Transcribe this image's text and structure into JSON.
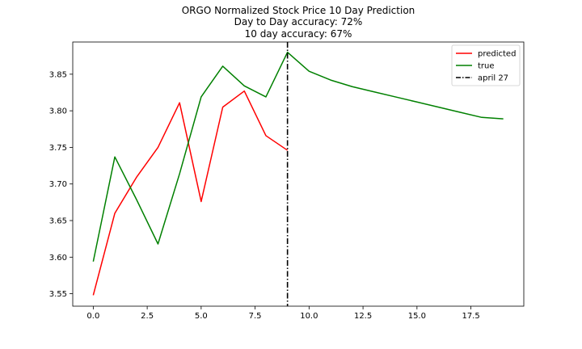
{
  "chart_data": {
    "type": "line",
    "title_lines": [
      "ORGO Normalized Stock Price 10 Day Prediction",
      "Day to Day accuracy: 72%",
      "10 day accuracy: 67%"
    ],
    "xlabel": "",
    "ylabel": "",
    "xlim": [
      -0.95,
      19.95
    ],
    "ylim": [
      3.533,
      3.894
    ],
    "x_ticks": [
      0.0,
      2.5,
      5.0,
      7.5,
      10.0,
      12.5,
      15.0,
      17.5
    ],
    "x_tick_labels": [
      "0.0",
      "2.5",
      "5.0",
      "7.5",
      "10.0",
      "12.5",
      "15.0",
      "17.5"
    ],
    "y_ticks": [
      3.55,
      3.6,
      3.65,
      3.7,
      3.75,
      3.8,
      3.85
    ],
    "y_tick_labels": [
      "3.55",
      "3.60",
      "3.65",
      "3.70",
      "3.75",
      "3.80",
      "3.85"
    ],
    "grid": false,
    "legend_position": "top-right",
    "series": [
      {
        "name": "predicted",
        "color": "#ff0000",
        "x": [
          0,
          1,
          2,
          3,
          4,
          5,
          6,
          7,
          8,
          9
        ],
        "values": [
          3.548,
          3.66,
          3.709,
          3.75,
          3.811,
          3.676,
          3.805,
          3.827,
          3.766,
          3.746
        ]
      },
      {
        "name": "true",
        "color": "#008000",
        "x": [
          0,
          1,
          2,
          3,
          4,
          5,
          6,
          7,
          8,
          9,
          10,
          11,
          12,
          13,
          14,
          15,
          16,
          17,
          18,
          19
        ],
        "values": [
          3.594,
          3.737,
          3.679,
          3.618,
          3.714,
          3.819,
          3.861,
          3.834,
          3.819,
          3.88,
          3.854,
          3.842,
          3.833,
          3.826,
          3.819,
          3.812,
          3.805,
          3.798,
          3.791,
          3.789
        ]
      }
    ],
    "vline": {
      "name": "april 27",
      "x": 9,
      "color": "#000000",
      "style": "dash-dot"
    }
  }
}
